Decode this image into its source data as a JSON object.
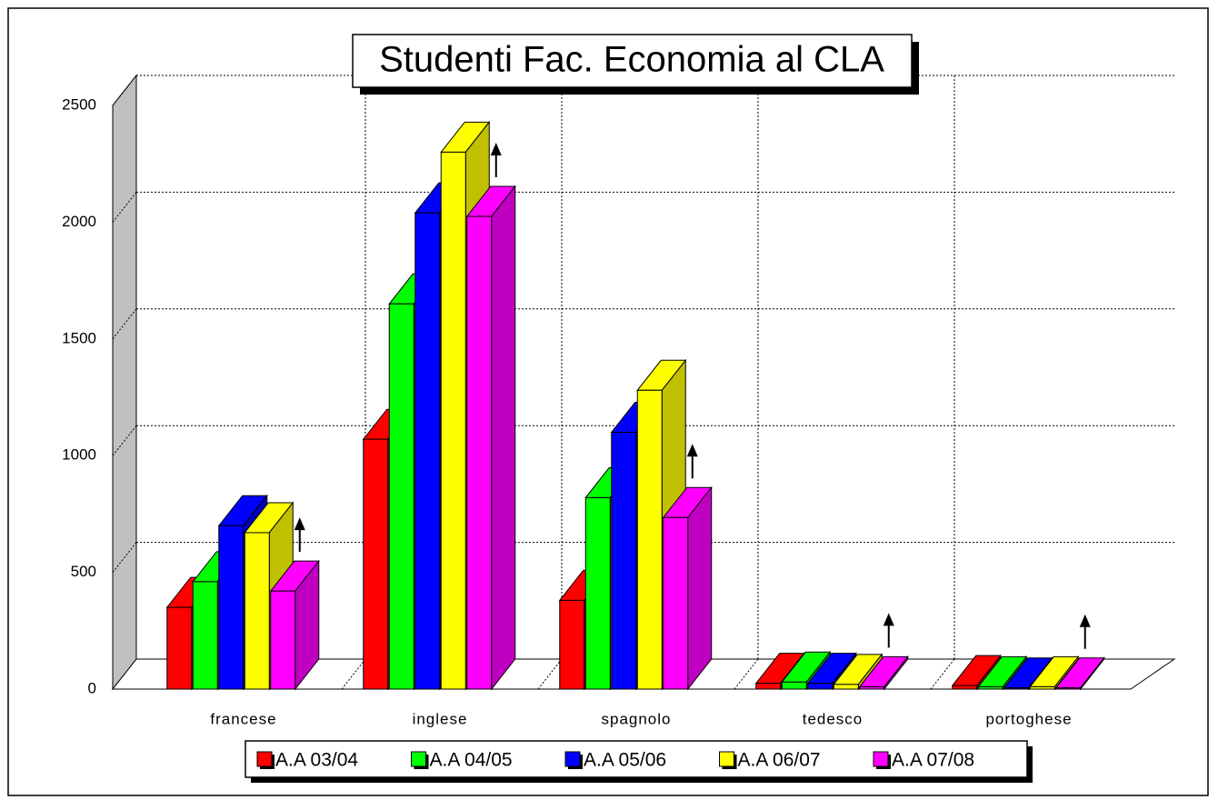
{
  "chart_data": {
    "type": "bar3d",
    "title": "Studenti Fac. Economia al CLA",
    "categories": [
      "francese",
      "inglese",
      "spagnolo",
      "tedesco",
      "portoghese"
    ],
    "series": [
      {
        "name": "A.A 03/04",
        "color": "#ff0000",
        "side": "#c00000",
        "values": [
          350,
          1070,
          380,
          25,
          15
        ]
      },
      {
        "name": "A.A 04/05",
        "color": "#00ff00",
        "side": "#00c000",
        "values": [
          460,
          1650,
          820,
          30,
          10
        ]
      },
      {
        "name": "A.A 05/06",
        "color": "#0000ff",
        "side": "#0000c0",
        "values": [
          700,
          2040,
          1100,
          25,
          5
        ]
      },
      {
        "name": "A.A 06/07",
        "color": "#ffff00",
        "side": "#c0c000",
        "values": [
          670,
          2300,
          1280,
          20,
          10
        ]
      },
      {
        "name": "A.A 07/08",
        "color": "#ff00ff",
        "side": "#c000c0",
        "values": [
          420,
          2025,
          735,
          10,
          5
        ]
      }
    ],
    "ylim": [
      0,
      2500
    ],
    "yticks": [
      0,
      500,
      1000,
      1500,
      2000,
      2500
    ],
    "grid": true
  }
}
